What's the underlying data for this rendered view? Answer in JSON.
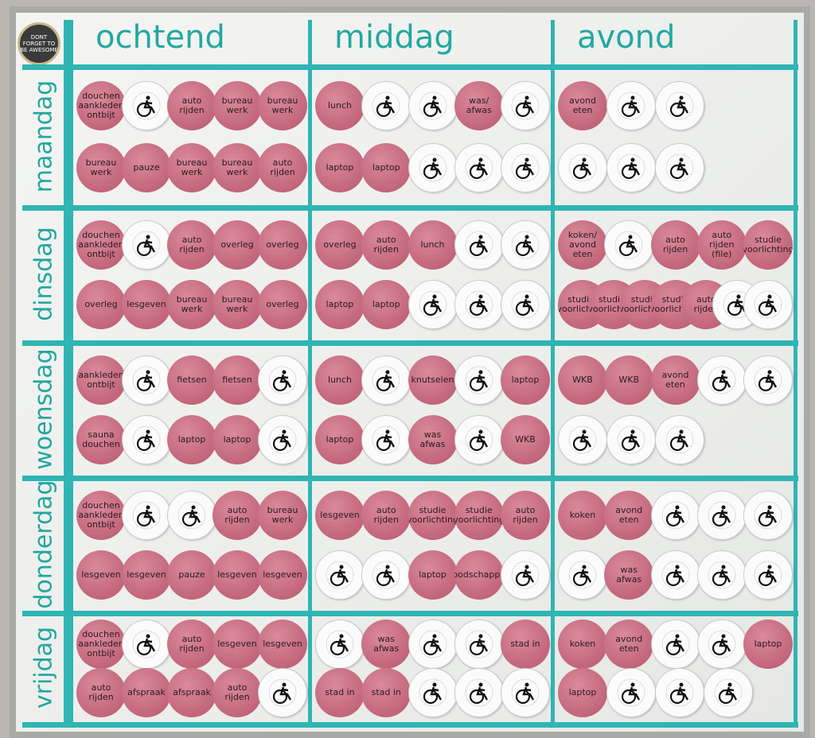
{
  "badge": "DONT FORGET TO BE AWESOME",
  "board": {
    "columns": [
      "ochtend",
      "middag",
      "avond"
    ],
    "days": [
      {
        "label": "maandag",
        "cells": [
          [
            [
              "douchen aankleden ontbijt",
              null,
              "auto rijden",
              "bureau werk",
              "bureau werk"
            ],
            [
              "bureau werk",
              "pauze",
              "bureau werk",
              "bureau werk",
              "auto rijden"
            ]
          ],
          [
            [
              "lunch",
              null,
              null,
              "was/ afwas",
              null
            ],
            [
              "laptop",
              "laptop",
              null,
              null,
              null
            ]
          ],
          [
            [
              "avond eten",
              null,
              null
            ],
            [
              null,
              null,
              null
            ]
          ]
        ]
      },
      {
        "label": "dinsdag",
        "cells": [
          [
            [
              "douchen aankleden ontbijt",
              null,
              "auto rijden",
              "overleg",
              "overleg"
            ],
            [
              "overleg",
              "lesgeven",
              "bureau werk",
              "bureau werk",
              "overleg"
            ]
          ],
          [
            [
              "overleg",
              "auto rijden",
              "lunch",
              null,
              null
            ],
            [
              "laptop",
              "laptop",
              null,
              null,
              null
            ]
          ],
          [
            [
              "koken/ avond eten",
              null,
              "auto rijden",
              "auto rijden (file)",
              "studie voorlichting"
            ],
            [
              "studie-voorlichting",
              "studie-voorlichting",
              "studie voorlichting",
              "studie voorlichting",
              "auto rijden",
              null,
              null
            ]
          ]
        ]
      },
      {
        "label": "woensdag",
        "cells": [
          [
            [
              "aankleden ontbijt",
              null,
              "fietsen",
              "fietsen",
              null
            ],
            [
              "sauna douchen",
              null,
              "laptop",
              "laptop",
              null
            ]
          ],
          [
            [
              "lunch",
              null,
              "knutselen",
              null,
              "laptop"
            ],
            [
              "laptop",
              null,
              "was afwas",
              null,
              "WKB"
            ]
          ],
          [
            [
              "WKB",
              "WKB",
              "avond eten",
              null,
              null
            ],
            [
              null,
              null,
              null
            ]
          ]
        ]
      },
      {
        "label": "donderdag",
        "cells": [
          [
            [
              "douchen aankleden ontbijt",
              null,
              null,
              "auto rijden",
              "bureau werk"
            ],
            [
              "lesgeven",
              "lesgeven",
              "pauze",
              "lesgeven",
              "lesgeven"
            ]
          ],
          [
            [
              "lesgeven",
              "auto rijden",
              "studie voorlichting",
              "studie voorlichting",
              "auto rijden"
            ],
            [
              null,
              null,
              "laptop",
              "boodschappen",
              null
            ]
          ],
          [
            [
              "koken",
              "avond eten",
              null,
              null,
              null
            ],
            [
              null,
              "was afwas",
              null,
              null,
              null
            ]
          ]
        ]
      },
      {
        "label": "vrijdag",
        "cells": [
          [
            [
              "douchen aankleden ontbijt",
              null,
              "auto rijden",
              "lesgeven",
              "lesgeven"
            ],
            [
              "auto rijden",
              "afspraak",
              "afspraak",
              "auto rijden",
              null
            ]
          ],
          [
            [
              null,
              "was afwas",
              null,
              null,
              "stad in"
            ],
            [
              "stad in",
              "stad in",
              null,
              null,
              null
            ]
          ],
          [
            [
              "koken",
              "avond eten",
              null,
              null,
              "laptop"
            ],
            [
              "laptop",
              null,
              null,
              null
            ]
          ]
        ]
      }
    ]
  }
}
